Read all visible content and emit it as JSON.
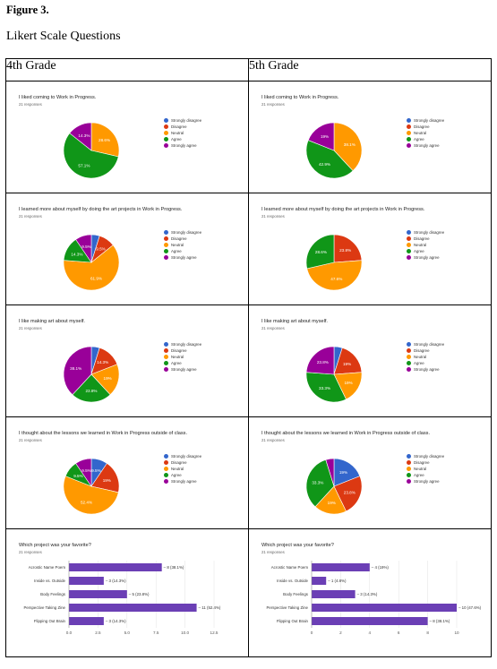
{
  "figure_title": "Figure 3.",
  "figure_subtitle": "Likert Scale Questions",
  "columns": [
    "4th Grade",
    "5th Grade"
  ],
  "colors": {
    "Strongly disagree": "#3366cc",
    "Disagree": "#dc3912",
    "Neutral": "#ff9900",
    "Agree": "#109618",
    "Strongly agree": "#990099",
    "bar": "#6b3fb5"
  },
  "legend_labels": [
    "Strongly disagree",
    "Disagree",
    "Neutral",
    "Agree",
    "Strongly agree"
  ],
  "chart_data": [
    {
      "id": "c1",
      "type": "pie",
      "grade": "4th Grade",
      "title": "I liked coming to Work in Progress.",
      "subtitle": "21 responses",
      "categories": [
        "Strongly disagree",
        "Disagree",
        "Neutral",
        "Agree",
        "Strongly agree"
      ],
      "values": [
        0,
        0,
        28.6,
        57.1,
        14.3
      ],
      "labels": [
        "",
        "",
        "28.6%",
        "57.1%",
        "14.3%"
      ]
    },
    {
      "id": "c2",
      "type": "pie",
      "grade": "5th Grade",
      "title": "I liked coming to Work in Progress.",
      "subtitle": "21 responses",
      "categories": [
        "Strongly disagree",
        "Disagree",
        "Neutral",
        "Agree",
        "Strongly agree"
      ],
      "values": [
        0,
        0,
        38.1,
        42.9,
        19
      ],
      "labels": [
        "",
        "",
        "38.1%",
        "42.9%",
        "19%"
      ]
    },
    {
      "id": "c3",
      "type": "pie",
      "grade": "4th Grade",
      "title": "I learned more about myself by doing the art projects in Work in Progress.",
      "subtitle": "21 responses",
      "categories": [
        "Strongly disagree",
        "Disagree",
        "Neutral",
        "Agree",
        "Strongly agree"
      ],
      "values": [
        4.8,
        9.5,
        61.9,
        14.3,
        9.5
      ],
      "labels": [
        "",
        "9.5%",
        "61.9%",
        "14.3%",
        "9.5%"
      ]
    },
    {
      "id": "c4",
      "type": "pie",
      "grade": "5th Grade",
      "title": "I learned more about myself by doing the art projects in Work in Progress.",
      "subtitle": "21 responses",
      "categories": [
        "Strongly disagree",
        "Disagree",
        "Neutral",
        "Agree",
        "Strongly agree"
      ],
      "values": [
        0,
        23.8,
        47.6,
        28.6,
        0
      ],
      "labels": [
        "",
        "23.8%",
        "47.6%",
        "28.6%",
        ""
      ]
    },
    {
      "id": "c5",
      "type": "pie",
      "grade": "4th Grade",
      "title": "I like making art about myself.",
      "subtitle": "21 responses",
      "categories": [
        "Strongly disagree",
        "Disagree",
        "Neutral",
        "Agree",
        "Strongly agree"
      ],
      "values": [
        4.8,
        14.3,
        19,
        23.8,
        38.1
      ],
      "labels": [
        "",
        "14.3%",
        "19%",
        "23.8%",
        "38.1%"
      ]
    },
    {
      "id": "c6",
      "type": "pie",
      "grade": "5th Grade",
      "title": "I like making art about myself.",
      "subtitle": "21 responses",
      "categories": [
        "Strongly disagree",
        "Disagree",
        "Neutral",
        "Agree",
        "Strongly agree"
      ],
      "values": [
        4.8,
        19,
        19,
        33.3,
        23.8
      ],
      "labels": [
        "",
        "19%",
        "19%",
        "33.3%",
        "23.8%"
      ]
    },
    {
      "id": "c7",
      "type": "pie",
      "grade": "4th Grade",
      "title": "I thought about the lessons we learned in Work in Progress outside of class.",
      "subtitle": "21 responses",
      "categories": [
        "Strongly disagree",
        "Disagree",
        "Neutral",
        "Agree",
        "Strongly agree"
      ],
      "values": [
        9.5,
        19,
        52.4,
        9.5,
        9.5
      ],
      "labels": [
        "9.5%",
        "19%",
        "52.4%",
        "9.5%",
        "9.5%"
      ]
    },
    {
      "id": "c8",
      "type": "pie",
      "grade": "5th Grade",
      "title": "I thought about the lessons we learned in Work in Progress outside of class.",
      "subtitle": "21 responses",
      "categories": [
        "Strongly disagree",
        "Disagree",
        "Neutral",
        "Agree",
        "Strongly agree"
      ],
      "values": [
        19,
        23.8,
        19,
        33.3,
        4.8
      ],
      "labels": [
        "19%",
        "23.8%",
        "19%",
        "33.3%",
        ""
      ]
    },
    {
      "id": "c9",
      "type": "bar",
      "orientation": "horizontal",
      "grade": "4th Grade",
      "title": "Which project was your favorite?",
      "subtitle": "21 responses",
      "categories": [
        "Acrostic Name Poem",
        "Inside vs. Outside",
        "Body Feelings",
        "Perspective Taking Zine",
        "Flipping Out Brain"
      ],
      "values": [
        8,
        3,
        5,
        11,
        3
      ],
      "data_labels": [
        "8 (38.1%)",
        "3 (14.3%)",
        "5 (23.8%)",
        "11 (52.4%)",
        "3 (14.3%)"
      ],
      "xlim": [
        0,
        12.5
      ],
      "xticks": [
        "0.0",
        "2.5",
        "5.0",
        "7.5",
        "10.0",
        "12.5"
      ]
    },
    {
      "id": "c10",
      "type": "bar",
      "orientation": "horizontal",
      "grade": "5th Grade",
      "title": "Which project was your favorite?",
      "subtitle": "21 responses",
      "categories": [
        "Acrostic Name Poem",
        "Inside vs. Outside",
        "Body Feelings",
        "Perspective Taking Zine",
        "Flipping Out Brain"
      ],
      "values": [
        4,
        1,
        3,
        10,
        8
      ],
      "data_labels": [
        "4 (19%)",
        "1 (4.8%)",
        "3 (14.3%)",
        "10 (47.6%)",
        "8 (38.1%)"
      ],
      "xlim": [
        0,
        10
      ],
      "xticks": [
        "0",
        "2",
        "4",
        "6",
        "8",
        "10"
      ]
    }
  ]
}
